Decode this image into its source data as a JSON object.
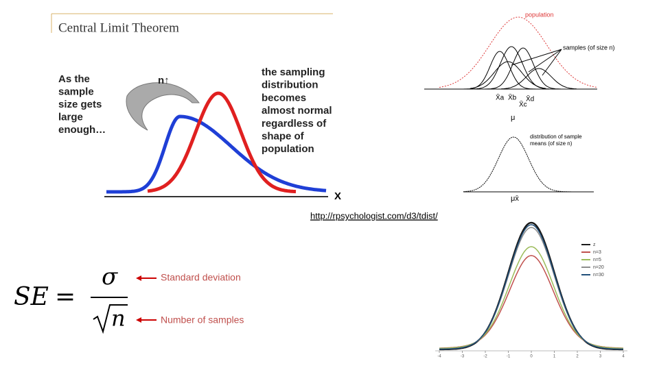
{
  "slide": {
    "clt_image": {
      "title": "Central Limit Theorem",
      "left_text": [
        "As the",
        "sample",
        "size gets",
        "large",
        "enough…"
      ],
      "arrow_label": "n↑",
      "right_text": [
        "the sampling",
        "distribution",
        "becomes",
        "almost normal",
        "regardless of",
        "shape of",
        "population"
      ],
      "axis_label": "X"
    },
    "sampling_image": {
      "population": "population",
      "samples": "samples (of size n)",
      "sample_means": [
        "X̄a",
        "X̄b",
        "X̄c",
        "X̄d"
      ],
      "mu": "μ",
      "dist_label": [
        "distribution of sample",
        "means (of size n)"
      ],
      "mu_xbar": "μx̄"
    },
    "link": "http://rpsychologist.com/d3/tdist/",
    "formula": {
      "lhs": "SE",
      "eq": "=",
      "numerator": "σ",
      "denominator": "n",
      "numerator_note": "Standard deviation",
      "denominator_note": "Number of samples"
    },
    "tdist_plot": {
      "legend": [
        "z",
        "n=3",
        "n=5",
        "n=20",
        "n=30"
      ],
      "colors": [
        "#1a1a1a",
        "#c0504d",
        "#9bbb59",
        "#8c8c8c",
        "#1f4e79"
      ],
      "xticks": [
        -4,
        -3,
        -2,
        -1,
        0,
        1,
        2,
        3,
        4
      ]
    }
  }
}
